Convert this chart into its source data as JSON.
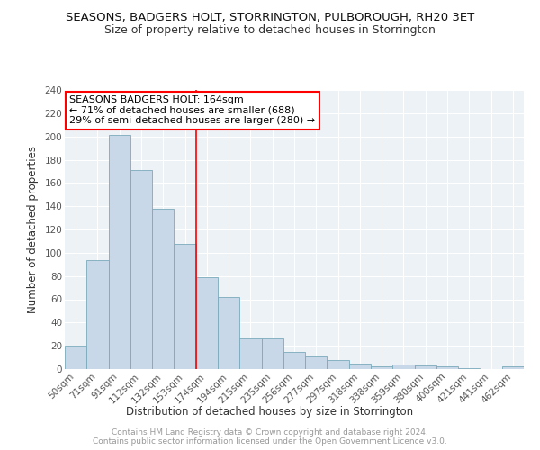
{
  "title": "SEASONS, BADGERS HOLT, STORRINGTON, PULBOROUGH, RH20 3ET",
  "subtitle": "Size of property relative to detached houses in Storrington",
  "xlabel": "Distribution of detached houses by size in Storrington",
  "ylabel": "Number of detached properties",
  "categories": [
    "50sqm",
    "71sqm",
    "91sqm",
    "112sqm",
    "132sqm",
    "153sqm",
    "174sqm",
    "194sqm",
    "215sqm",
    "235sqm",
    "256sqm",
    "277sqm",
    "297sqm",
    "318sqm",
    "338sqm",
    "359sqm",
    "380sqm",
    "400sqm",
    "421sqm",
    "441sqm",
    "462sqm"
  ],
  "values": [
    20,
    94,
    201,
    171,
    138,
    108,
    79,
    62,
    26,
    26,
    15,
    11,
    8,
    5,
    2,
    4,
    3,
    2,
    1,
    0,
    2
  ],
  "bar_color": "#c8d8e8",
  "bar_edge_color": "#7aaabb",
  "vline_x_index": 5.5,
  "vline_color": "red",
  "annotation_line1": "SEASONS BADGERS HOLT: 164sqm",
  "annotation_line2": "← 71% of detached houses are smaller (688)",
  "annotation_line3": "29% of semi-detached houses are larger (280) →",
  "ylim": [
    0,
    240
  ],
  "yticks": [
    0,
    20,
    40,
    60,
    80,
    100,
    120,
    140,
    160,
    180,
    200,
    220,
    240
  ],
  "bg_color": "#edf2f7",
  "grid_color": "#ffffff",
  "title_fontsize": 9.5,
  "subtitle_fontsize": 9,
  "axis_label_fontsize": 8.5,
  "tick_fontsize": 7.5,
  "annotation_fontsize": 8,
  "footer_fontsize": 6.5,
  "footer_text": "Contains HM Land Registry data © Crown copyright and database right 2024.\nContains public sector information licensed under the Open Government Licence v3.0."
}
